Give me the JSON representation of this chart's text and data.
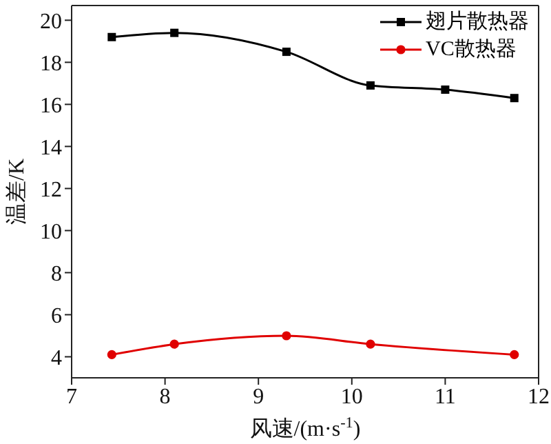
{
  "chart_data": {
    "type": "line",
    "xlabel": "风速/(m·s$^{-1}$)",
    "ylabel": "温差/K",
    "xlim": [
      7,
      12
    ],
    "xticks": [
      7,
      8,
      9,
      10,
      11,
      12
    ],
    "ylim": [
      3,
      20.7
    ],
    "yticks": [
      4,
      6,
      8,
      10,
      12,
      14,
      16,
      18,
      20
    ],
    "legend": "top right",
    "line_style": "solid",
    "series": [
      {
        "name": "翅片散热器",
        "color": "#000000",
        "marker": "square",
        "x": [
          7.43,
          8.1,
          9.3,
          10.2,
          11.0,
          11.74
        ],
        "values": [
          19.2,
          19.4,
          18.5,
          16.9,
          16.7,
          16.3
        ]
      },
      {
        "name": "VC散热器",
        "color": "#e00000",
        "marker": "circle",
        "x": [
          7.43,
          8.1,
          9.3,
          10.2,
          11.74
        ],
        "values": [
          4.1,
          4.6,
          5.0,
          4.6,
          4.1
        ]
      }
    ]
  }
}
